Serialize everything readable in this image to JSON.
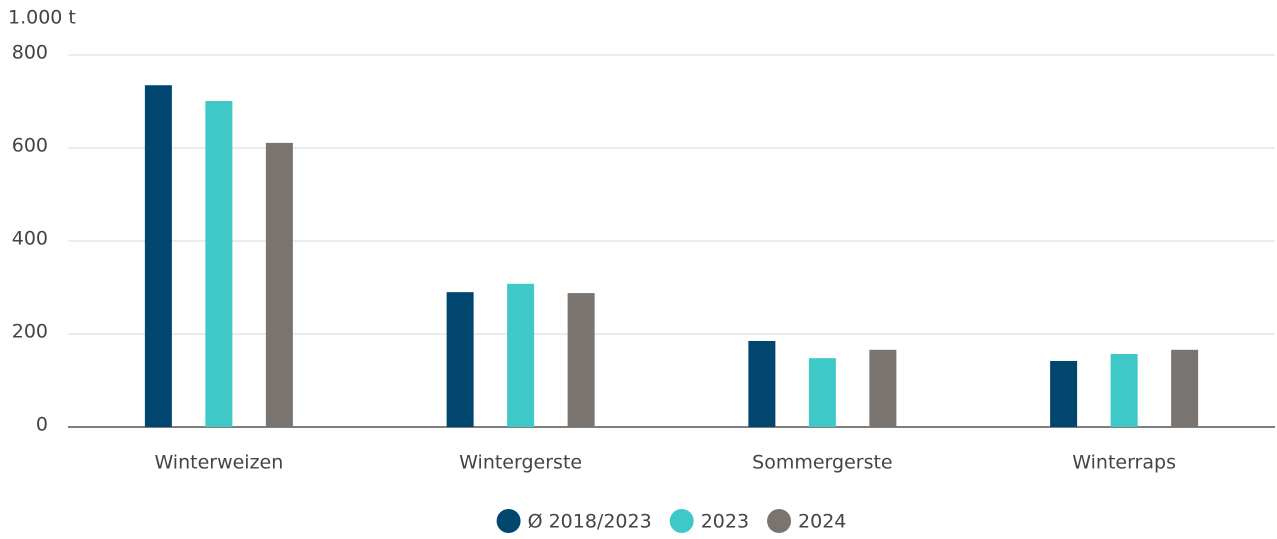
{
  "chart_data": {
    "type": "bar",
    "y_axis_label": "1.000 t",
    "categories": [
      "Winterweizen",
      "Wintergerste",
      "Sommergerste",
      "Winterraps"
    ],
    "series": [
      {
        "name": "Ø 2018/2023",
        "color": "#00466e",
        "values": [
          735,
          290,
          185,
          142
        ]
      },
      {
        "name": "2023",
        "color": "#3fc8c8",
        "values": [
          701,
          308,
          148,
          157
        ]
      },
      {
        "name": "2024",
        "color": "#7a7470",
        "values": [
          611,
          288,
          166,
          166
        ]
      }
    ],
    "ylim": [
      0,
      800
    ],
    "yticks": [
      0,
      200,
      400,
      600,
      800
    ],
    "grid": true
  }
}
